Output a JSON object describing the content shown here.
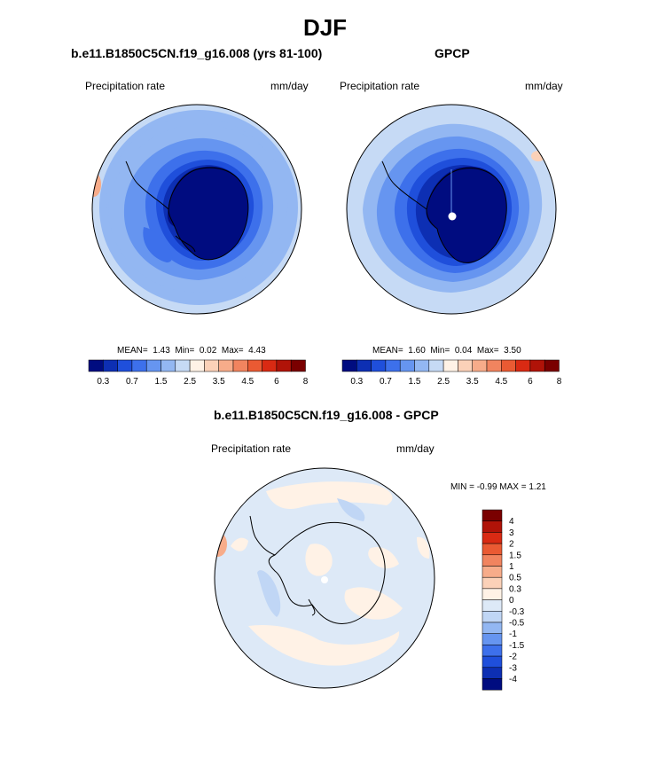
{
  "title": "DJF",
  "panels": [
    {
      "id": "model",
      "title": "b.e11.B1850C5CN.f19_g16.008 (yrs 81-100)",
      "left_label": "Precipitation rate",
      "right_label": "mm/day",
      "stats": {
        "mean_label": "MEAN=",
        "mean": "1.43",
        "min_label": "Min=",
        "min": "0.02",
        "max_label": "Max=",
        "max": "4.43"
      }
    },
    {
      "id": "obs",
      "title": "GPCP",
      "left_label": "Precipitation rate",
      "right_label": "mm/day",
      "stats": {
        "mean_label": "MEAN=",
        "mean": "1.60",
        "min_label": "Min=",
        "min": "0.04",
        "max_label": "Max=",
        "max": "3.50"
      }
    },
    {
      "id": "diff",
      "title": "b.e11.B1850C5CN.f19_g16.008 - GPCP",
      "left_label": "Precipitation rate",
      "right_label": "mm/day",
      "stats_text": "MIN =  -0.99 MAX =   1.21"
    }
  ],
  "colorbar_main": {
    "colors": [
      "#000c80",
      "#0d2fb3",
      "#1f4fdb",
      "#3d70eb",
      "#6695f0",
      "#93b7f2",
      "#c6daf5",
      "#fff2e6",
      "#fbd1b8",
      "#f7ac8a",
      "#f1845f",
      "#ea5a33",
      "#d92a13",
      "#b01308",
      "#7a0000"
    ],
    "tick_labels": [
      "0.3",
      "0.7",
      "1.5",
      "2.5",
      "3.5",
      "4.5",
      "6",
      "8"
    ]
  },
  "colorbar_diff": {
    "colors": [
      "#7a0000",
      "#b01308",
      "#d92a13",
      "#ea5a33",
      "#f1845f",
      "#f7ac8a",
      "#fbd1b8",
      "#fff2e6",
      "#dde9f7",
      "#c0d6f5",
      "#93b7f2",
      "#6695f0",
      "#3d70eb",
      "#1f4fdb",
      "#0d2fb3",
      "#000c80"
    ],
    "tick_labels": [
      "4",
      "3",
      "2",
      "1.5",
      "1",
      "0.5",
      "0.3",
      "0",
      "-0.3",
      "-0.5",
      "-1",
      "-1.5",
      "-2",
      "-3",
      "-4"
    ]
  }
}
